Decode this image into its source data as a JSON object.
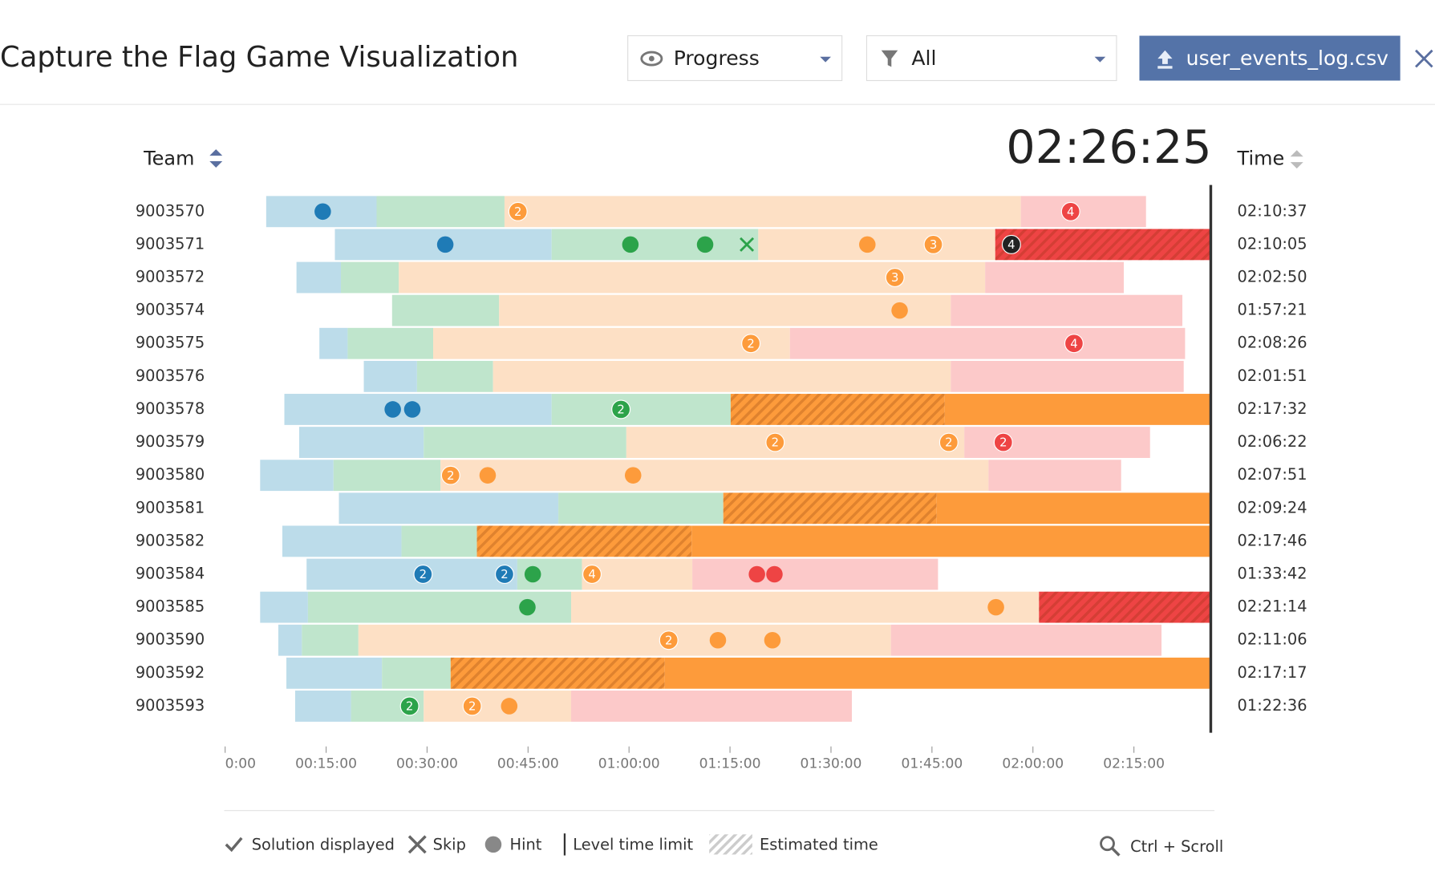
{
  "header": {
    "title": "Capture the Flag Game Visualization",
    "view_select": "Progress",
    "filter_select": "All",
    "file_button": "user_events_log.csv"
  },
  "chart_data": {
    "type": "timeline",
    "team_column": "Team",
    "time_column": "Time",
    "clock": "02:26:25",
    "xlim": [
      0,
      146.42
    ],
    "xticks": [
      {
        "value": 0,
        "label": "0:00"
      },
      {
        "value": 15,
        "label": "00:15:00"
      },
      {
        "value": 30,
        "label": "00:30:00"
      },
      {
        "value": 45,
        "label": "00:45:00"
      },
      {
        "value": 60,
        "label": "01:00:00"
      },
      {
        "value": 75,
        "label": "01:15:00"
      },
      {
        "value": 90,
        "label": "01:30:00"
      },
      {
        "value": 105,
        "label": "01:45:00"
      },
      {
        "value": 120,
        "label": "02:00:00"
      },
      {
        "value": 135,
        "label": "02:15:00"
      }
    ],
    "levels": [
      {
        "light": "#bcdcea",
        "dark": "#1f7bb6"
      },
      {
        "light": "#bfe5cc",
        "dark": "#2ca34a"
      },
      {
        "light": "#fde0c5",
        "dark": "#fd9b3b"
      },
      {
        "light": "#fcc9c9",
        "dark": "#ee4444"
      }
    ],
    "rows": [
      {
        "team": "9003570",
        "time": "02:10:37",
        "segments": [
          {
            "level": 1,
            "start": 6.1,
            "end": 22.5,
            "style": "plan"
          },
          {
            "level": 2,
            "start": 22.5,
            "end": 41.5,
            "style": "plan"
          },
          {
            "level": 3,
            "start": 41.5,
            "end": 118.2,
            "style": "plan"
          },
          {
            "level": 4,
            "start": 118.2,
            "end": 136.8,
            "style": "plan"
          }
        ],
        "events": [
          {
            "t": 14.5,
            "level": 1,
            "kind": "hint"
          },
          {
            "t": 43.5,
            "level": 3,
            "kind": "hint",
            "count": 2
          },
          {
            "t": 125.6,
            "level": 4,
            "kind": "hint",
            "count": 4
          }
        ]
      },
      {
        "team": "9003571",
        "time": "02:10:05",
        "segments": [
          {
            "level": 1,
            "start": 16.3,
            "end": 48.5,
            "style": "plan"
          },
          {
            "level": 2,
            "start": 48.5,
            "end": 79.2,
            "style": "plan"
          },
          {
            "level": 3,
            "start": 79.2,
            "end": 114.4,
            "style": "plan"
          },
          {
            "level": 4,
            "start": 114.4,
            "end": 146.4,
            "style": "estimated"
          }
        ],
        "events": [
          {
            "t": 32.7,
            "level": 1,
            "kind": "hint"
          },
          {
            "t": 60.2,
            "level": 2,
            "kind": "hint"
          },
          {
            "t": 71.3,
            "level": 2,
            "kind": "hint"
          },
          {
            "t": 77.5,
            "level": 2,
            "kind": "skip"
          },
          {
            "t": 95.4,
            "level": 3,
            "kind": "hint"
          },
          {
            "t": 105.2,
            "level": 3,
            "kind": "hint",
            "count": 3
          },
          {
            "t": 116.8,
            "level": 4,
            "kind": "hint",
            "count": 4,
            "color": "#222222"
          }
        ]
      },
      {
        "team": "9003572",
        "time": "02:02:50",
        "segments": [
          {
            "level": 1,
            "start": 10.6,
            "end": 17.2,
            "style": "plan"
          },
          {
            "level": 2,
            "start": 17.2,
            "end": 25.8,
            "style": "plan"
          },
          {
            "level": 3,
            "start": 25.8,
            "end": 112.9,
            "style": "plan"
          },
          {
            "level": 4,
            "start": 112.9,
            "end": 133.5,
            "style": "plan"
          }
        ],
        "events": [
          {
            "t": 99.5,
            "level": 3,
            "kind": "hint",
            "count": 3
          }
        ]
      },
      {
        "team": "9003574",
        "time": "01:57:21",
        "segments": [
          {
            "level": 2,
            "start": 24.8,
            "end": 40.7,
            "style": "plan"
          },
          {
            "level": 3,
            "start": 40.7,
            "end": 107.8,
            "style": "plan"
          },
          {
            "level": 4,
            "start": 107.8,
            "end": 142.2,
            "style": "plan"
          }
        ],
        "events": [
          {
            "t": 100.2,
            "level": 3,
            "kind": "hint"
          }
        ]
      },
      {
        "team": "9003575",
        "time": "02:08:26",
        "segments": [
          {
            "level": 1,
            "start": 14.0,
            "end": 18.2,
            "style": "plan"
          },
          {
            "level": 2,
            "start": 18.2,
            "end": 30.9,
            "style": "plan"
          },
          {
            "level": 3,
            "start": 30.9,
            "end": 83.9,
            "style": "plan"
          },
          {
            "level": 4,
            "start": 83.9,
            "end": 142.6,
            "style": "plan"
          }
        ],
        "events": [
          {
            "t": 78.1,
            "level": 3,
            "kind": "hint",
            "count": 2
          },
          {
            "t": 126.1,
            "level": 4,
            "kind": "hint",
            "count": 4
          }
        ]
      },
      {
        "team": "9003576",
        "time": "02:01:51",
        "segments": [
          {
            "level": 1,
            "start": 20.6,
            "end": 28.5,
            "style": "plan"
          },
          {
            "level": 2,
            "start": 28.5,
            "end": 39.8,
            "style": "plan"
          },
          {
            "level": 3,
            "start": 39.8,
            "end": 107.8,
            "style": "plan"
          },
          {
            "level": 4,
            "start": 107.8,
            "end": 142.4,
            "style": "plan"
          }
        ],
        "events": []
      },
      {
        "team": "9003578",
        "time": "02:17:32",
        "segments": [
          {
            "level": 1,
            "start": 8.8,
            "end": 48.5,
            "style": "plan"
          },
          {
            "level": 2,
            "start": 48.5,
            "end": 75.1,
            "style": "plan"
          },
          {
            "level": 3,
            "start": 75.1,
            "end": 106.9,
            "style": "estimated"
          },
          {
            "level": 3,
            "start": 106.9,
            "end": 146.4,
            "style": "over"
          }
        ],
        "events": [
          {
            "t": 24.9,
            "level": 1,
            "kind": "hint"
          },
          {
            "t": 27.8,
            "level": 1,
            "kind": "hint"
          },
          {
            "t": 58.8,
            "level": 2,
            "kind": "hint",
            "count": 2
          }
        ]
      },
      {
        "team": "9003579",
        "time": "02:06:22",
        "segments": [
          {
            "level": 1,
            "start": 11.0,
            "end": 29.5,
            "style": "plan"
          },
          {
            "level": 2,
            "start": 29.5,
            "end": 59.6,
            "style": "plan"
          },
          {
            "level": 3,
            "start": 59.6,
            "end": 109.8,
            "style": "plan"
          },
          {
            "level": 4,
            "start": 109.8,
            "end": 137.4,
            "style": "plan"
          }
        ],
        "events": [
          {
            "t": 81.7,
            "level": 3,
            "kind": "hint",
            "count": 2
          },
          {
            "t": 107.5,
            "level": 3,
            "kind": "hint",
            "count": 2
          },
          {
            "t": 115.6,
            "level": 4,
            "kind": "hint",
            "count": 2
          }
        ]
      },
      {
        "team": "9003580",
        "time": "02:07:51",
        "segments": [
          {
            "level": 1,
            "start": 5.2,
            "end": 16.1,
            "style": "plan"
          },
          {
            "level": 2,
            "start": 16.1,
            "end": 32.0,
            "style": "plan"
          },
          {
            "level": 3,
            "start": 32.0,
            "end": 113.4,
            "style": "plan"
          },
          {
            "level": 4,
            "start": 113.4,
            "end": 133.1,
            "style": "plan"
          }
        ],
        "events": [
          {
            "t": 33.5,
            "level": 3,
            "kind": "hint",
            "count": 2
          },
          {
            "t": 39.0,
            "level": 3,
            "kind": "hint"
          },
          {
            "t": 60.6,
            "level": 3,
            "kind": "hint"
          }
        ]
      },
      {
        "team": "9003581",
        "time": "02:09:24",
        "segments": [
          {
            "level": 1,
            "start": 16.9,
            "end": 49.5,
            "style": "plan"
          },
          {
            "level": 2,
            "start": 49.5,
            "end": 74.0,
            "style": "plan"
          },
          {
            "level": 3,
            "start": 74.0,
            "end": 105.7,
            "style": "estimated"
          },
          {
            "level": 3,
            "start": 105.7,
            "end": 146.4,
            "style": "over"
          }
        ],
        "events": []
      },
      {
        "team": "9003582",
        "time": "02:17:46",
        "segments": [
          {
            "level": 1,
            "start": 8.5,
            "end": 26.2,
            "style": "plan"
          },
          {
            "level": 2,
            "start": 26.2,
            "end": 37.4,
            "style": "plan"
          },
          {
            "level": 3,
            "start": 37.4,
            "end": 69.3,
            "style": "estimated"
          },
          {
            "level": 3,
            "start": 69.3,
            "end": 146.4,
            "style": "over"
          }
        ],
        "events": []
      },
      {
        "team": "9003584",
        "time": "01:33:42",
        "segments": [
          {
            "level": 1,
            "start": 12.1,
            "end": 43.4,
            "style": "plan"
          },
          {
            "level": 2,
            "start": 43.4,
            "end": 53.0,
            "style": "plan"
          },
          {
            "level": 3,
            "start": 53.0,
            "end": 69.4,
            "style": "plan"
          },
          {
            "level": 4,
            "start": 69.4,
            "end": 105.9,
            "style": "plan"
          }
        ],
        "events": [
          {
            "t": 29.4,
            "level": 1,
            "kind": "hint",
            "count": 2
          },
          {
            "t": 41.5,
            "level": 1,
            "kind": "hint",
            "count": 2
          },
          {
            "t": 45.7,
            "level": 2,
            "kind": "hint"
          },
          {
            "t": 54.5,
            "level": 3,
            "kind": "hint",
            "count": 4
          },
          {
            "t": 79.0,
            "level": 4,
            "kind": "hint"
          },
          {
            "t": 81.6,
            "level": 4,
            "kind": "hint"
          }
        ]
      },
      {
        "team": "9003585",
        "time": "02:21:14",
        "segments": [
          {
            "level": 1,
            "start": 5.2,
            "end": 12.3,
            "style": "plan"
          },
          {
            "level": 2,
            "start": 12.3,
            "end": 51.4,
            "style": "plan"
          },
          {
            "level": 3,
            "start": 51.4,
            "end": 120.9,
            "style": "plan"
          },
          {
            "level": 4,
            "start": 120.9,
            "end": 146.4,
            "style": "estimated"
          }
        ],
        "events": [
          {
            "t": 44.9,
            "level": 2,
            "kind": "hint"
          },
          {
            "t": 114.5,
            "level": 3,
            "kind": "hint"
          }
        ]
      },
      {
        "team": "9003590",
        "time": "02:11:06",
        "segments": [
          {
            "level": 1,
            "start": 7.9,
            "end": 11.4,
            "style": "plan"
          },
          {
            "level": 2,
            "start": 11.4,
            "end": 19.8,
            "style": "plan"
          },
          {
            "level": 3,
            "start": 19.8,
            "end": 98.9,
            "style": "plan"
          },
          {
            "level": 4,
            "start": 98.9,
            "end": 139.1,
            "style": "plan"
          }
        ],
        "events": [
          {
            "t": 65.9,
            "level": 3,
            "kind": "hint",
            "count": 2
          },
          {
            "t": 73.2,
            "level": 3,
            "kind": "hint"
          },
          {
            "t": 81.3,
            "level": 3,
            "kind": "hint"
          }
        ]
      },
      {
        "team": "9003592",
        "time": "02:17:17",
        "segments": [
          {
            "level": 1,
            "start": 9.1,
            "end": 23.3,
            "style": "plan"
          },
          {
            "level": 2,
            "start": 23.3,
            "end": 33.5,
            "style": "plan"
          },
          {
            "level": 3,
            "start": 33.5,
            "end": 65.3,
            "style": "estimated"
          },
          {
            "level": 3,
            "start": 65.3,
            "end": 146.4,
            "style": "over"
          }
        ],
        "events": []
      },
      {
        "team": "9003593",
        "time": "01:22:36",
        "segments": [
          {
            "level": 1,
            "start": 10.4,
            "end": 18.7,
            "style": "plan"
          },
          {
            "level": 2,
            "start": 18.7,
            "end": 29.5,
            "style": "plan"
          },
          {
            "level": 3,
            "start": 29.5,
            "end": 51.4,
            "style": "plan"
          },
          {
            "level": 4,
            "start": 51.4,
            "end": 93.1,
            "style": "plan"
          }
        ],
        "events": [
          {
            "t": 27.4,
            "level": 2,
            "kind": "hint",
            "count": 2
          },
          {
            "t": 36.7,
            "level": 3,
            "kind": "hint",
            "count": 2
          },
          {
            "t": 42.2,
            "level": 3,
            "kind": "hint"
          }
        ]
      }
    ],
    "legend": [
      "Solution displayed",
      "Skip",
      "Hint",
      "Level time limit",
      "Estimated time"
    ],
    "zoom_hint": "Ctrl + Scroll"
  }
}
